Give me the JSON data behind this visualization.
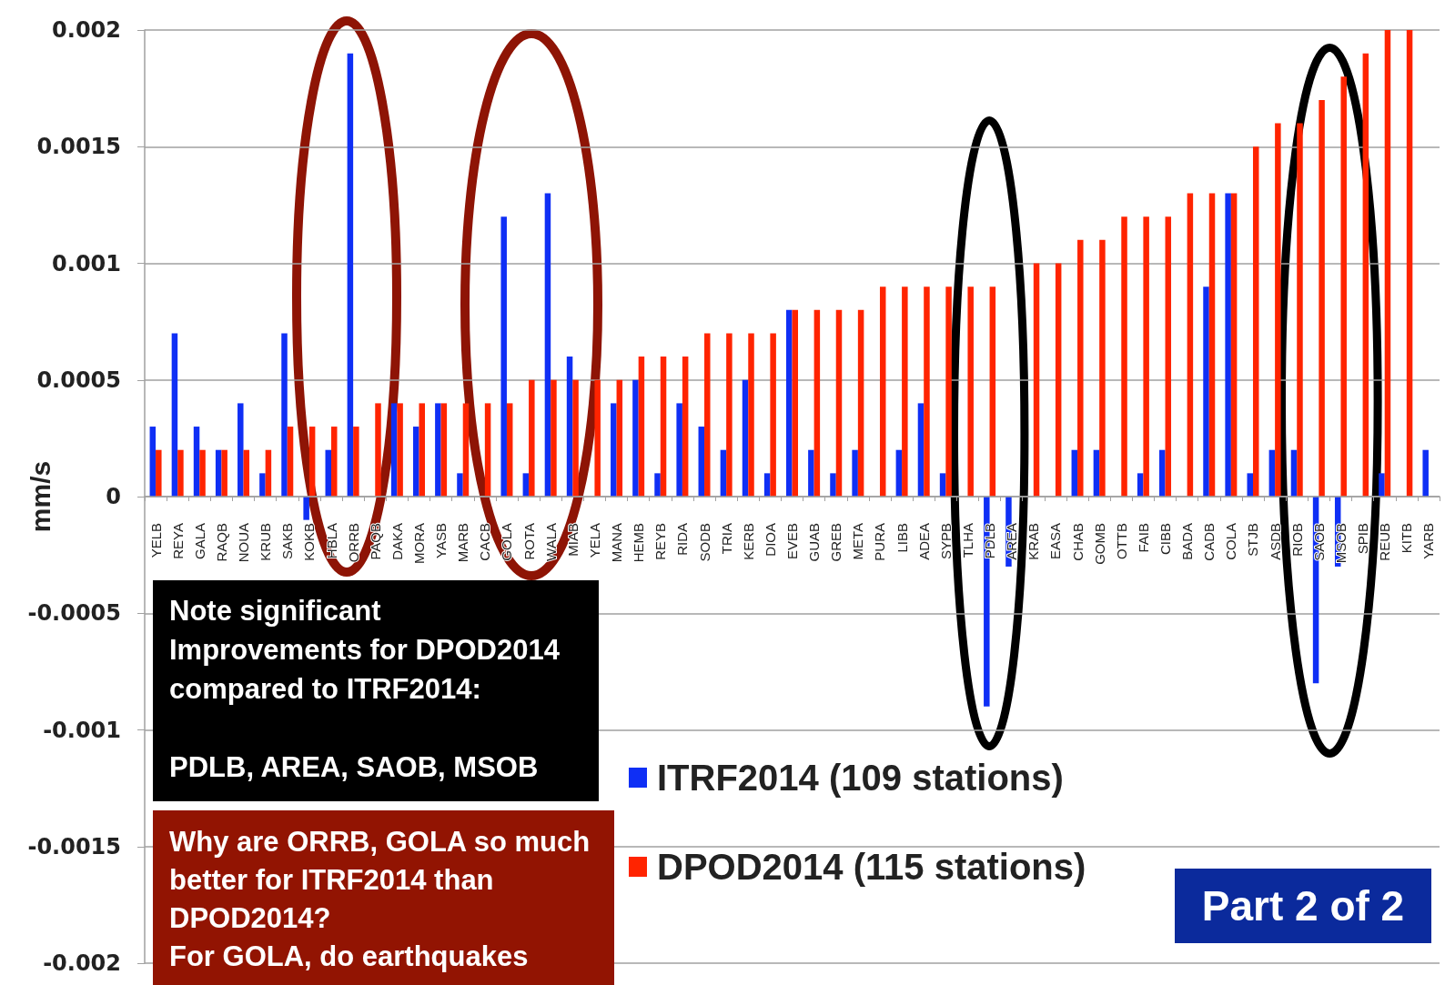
{
  "chart_data": {
    "type": "bar",
    "ylabel": "mm/s",
    "categories": [
      "YELB",
      "REYA",
      "GALA",
      "RAQB",
      "NOUA",
      "KRUB",
      "SAKB",
      "KOKB",
      "HBLA",
      "ORRB",
      "PAQB",
      "DAKA",
      "MORA",
      "YASB",
      "MARB",
      "CACB",
      "GOLA",
      "ROTA",
      "WALA",
      "MIAB",
      "YELA",
      "MANA",
      "HEMB",
      "REYB",
      "RIDA",
      "SODB",
      "TRIA",
      "KERB",
      "DIOA",
      "EVEB",
      "GUAB",
      "GREB",
      "META",
      "PURA",
      "LIBB",
      "ADEA",
      "SYPB",
      "TLHA",
      "PDLB",
      "AREA",
      "KRAB",
      "EASA",
      "CHAB",
      "GOMB",
      "OTTB",
      "FAIB",
      "CIBB",
      "BADA",
      "CADB",
      "COLA",
      "STJB",
      "ASDB",
      "RIOB",
      "SAOB",
      "MSOB",
      "SPIB",
      "REUB",
      "KITB",
      "YARB"
    ],
    "series": [
      {
        "name": "ITRF2014 (109 stations)",
        "color": "#0f2ff5",
        "values": [
          0.0003,
          0.0007,
          0.0003,
          0.0002,
          0.0004,
          0.0001,
          0.0007,
          -0.0001,
          0.0002,
          0.0019,
          null,
          0.0004,
          0.0003,
          0.0004,
          0.0001,
          null,
          0.0012,
          0.0001,
          0.0013,
          0.0006,
          null,
          0.0004,
          0.0005,
          0.0001,
          0.0004,
          0.0003,
          0.0002,
          0.0005,
          0.0001,
          0.0008,
          0.0002,
          0.0001,
          0.0002,
          null,
          0.0002,
          0.0004,
          0.0001,
          null,
          -0.0009,
          -0.0003,
          null,
          null,
          0.0002,
          0.0002,
          null,
          0.0001,
          0.0002,
          null,
          0.0009,
          0.0013,
          0.0001,
          0.0002,
          0.0002,
          -0.0008,
          -0.0003,
          null,
          0.0001,
          null,
          0.0002
        ]
      },
      {
        "name": "DPOD2014 (115 stations)",
        "color": "#ff2400",
        "values": [
          0.0002,
          0.0002,
          0.0002,
          0.0002,
          0.0002,
          0.0002,
          0.0003,
          0.0003,
          0.0003,
          0.0003,
          0.0004,
          0.0004,
          0.0004,
          0.0004,
          0.0004,
          0.0004,
          0.0004,
          0.0005,
          0.0005,
          0.0005,
          0.0005,
          0.0005,
          0.0006,
          0.0006,
          0.0006,
          0.0007,
          0.0007,
          0.0007,
          0.0007,
          0.0008,
          0.0008,
          0.0008,
          0.0008,
          0.0009,
          0.0009,
          0.0009,
          0.0009,
          0.0009,
          0.0009,
          null,
          0.001,
          0.001,
          0.0011,
          0.0011,
          0.0012,
          0.0012,
          0.0012,
          0.0013,
          0.0013,
          0.0013,
          0.0015,
          0.0016,
          0.0016,
          0.0017,
          0.0018,
          0.0019,
          0.002,
          0.002,
          null
        ]
      }
    ],
    "ylim": [
      -0.002,
      0.002
    ],
    "yticks": [
      -0.002,
      -0.0015,
      -0.001,
      -0.0005,
      0,
      0.0005,
      0.001,
      0.0015,
      0.002
    ],
    "grid": "y",
    "legend": "bottom",
    "annotations": [
      "Note significant\nImprovements for DPOD2014\ncompared to ITRF2014:\n\nPDLB, AREA, SAOB, MSOB",
      "Why are ORRB, GOLA so much\nbetter for ITRF2014 than\nDPOD2014?\nFor GOLA, do earthquakes",
      "Part 2 of 2"
    ]
  }
}
